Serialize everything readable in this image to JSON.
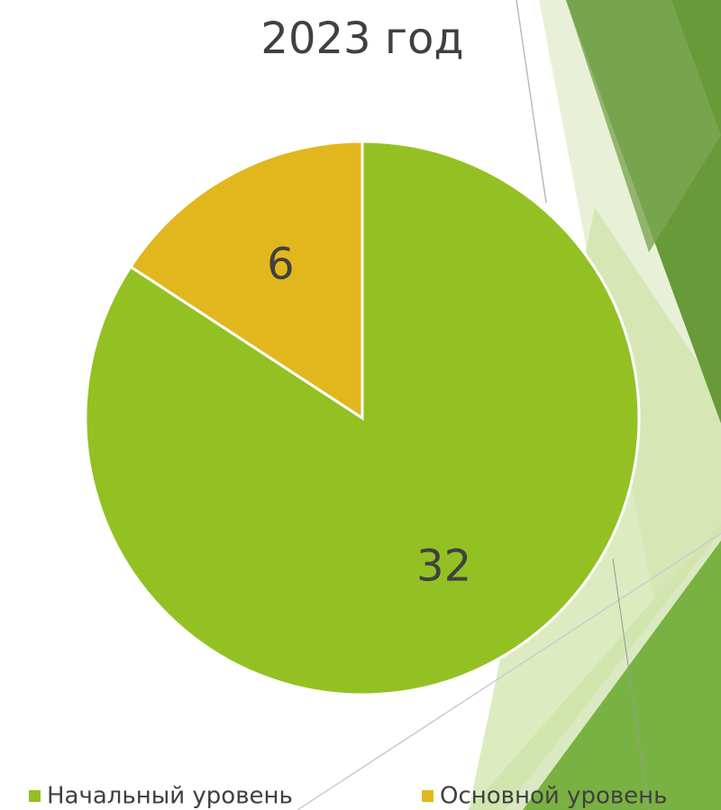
{
  "chart_data": {
    "type": "pie",
    "title": "2023 год",
    "categories": [
      "Начальный уровень",
      "Основной уровень"
    ],
    "values": [
      32,
      6
    ],
    "colors": [
      "#93c123",
      "#e2b71e"
    ]
  }
}
